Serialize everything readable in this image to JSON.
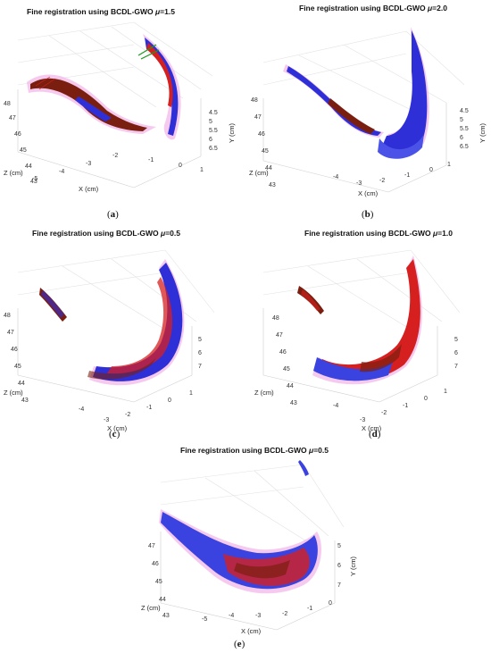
{
  "figure": {
    "panels": [
      {
        "id": "a",
        "label_open": "(",
        "label_letter": "a",
        "label_close": ")",
        "title_prefix": "Fine registration using BCDL-GWO ",
        "mu_symbol": "μ",
        "mu_value": "=1.5",
        "x_label": "X (cm)",
        "y_label": "Y (cm)",
        "z_label": "Z (cm)",
        "x_ticks": [
          "-5",
          "-4",
          "-3",
          "-2",
          "-1",
          "0",
          "1"
        ],
        "y_ticks": [
          "4.5",
          "5",
          "5.5",
          "6",
          "6.5"
        ],
        "z_ticks": [
          "48",
          "47",
          "46",
          "45",
          "44",
          "43"
        ]
      },
      {
        "id": "b",
        "label_open": "(",
        "label_letter": "b",
        "label_close": ")",
        "title_prefix": "Fine registration using BCDL-GWO ",
        "mu_symbol": "μ",
        "mu_value": "=2.0",
        "x_label": "X (cm)",
        "y_label": "Y (cm)",
        "z_label": "Z (cm)",
        "x_ticks": [
          "-4",
          "-3",
          "-2",
          "-1",
          "0",
          "1"
        ],
        "y_ticks": [
          "4.5",
          "5",
          "5.5",
          "6",
          "6.5"
        ],
        "z_ticks": [
          "48",
          "47",
          "46",
          "45",
          "44",
          "43"
        ]
      },
      {
        "id": "c",
        "label_open": "(",
        "label_letter": "c",
        "label_close": ")",
        "title_prefix": "Fine registration using BCDL-GWO ",
        "mu_symbol": "μ",
        "mu_value": "=0.5",
        "x_label": "X (cm)",
        "y_label": "",
        "z_label": "Z (cm)",
        "x_ticks": [
          "-4",
          "-3",
          "-2",
          "-1",
          "0",
          "1"
        ],
        "y_ticks": [
          "5",
          "6",
          "7"
        ],
        "z_ticks": [
          "48",
          "47",
          "46",
          "45",
          "44",
          "43"
        ]
      },
      {
        "id": "d",
        "label_open": "(",
        "label_letter": "d",
        "label_close": ")",
        "title_prefix": "Fine registration using BCDL-GWO ",
        "mu_symbol": "μ",
        "mu_value": "=1.0",
        "x_label": "X (cm)",
        "y_label": "",
        "z_label": "Z (cm)",
        "x_ticks": [
          "-4",
          "-3",
          "-2",
          "-1",
          "0",
          "1"
        ],
        "y_ticks": [
          "5",
          "6",
          "7"
        ],
        "z_ticks": [
          "48",
          "47",
          "46",
          "45",
          "44",
          "43"
        ]
      },
      {
        "id": "e",
        "label_open": "(",
        "label_letter": "e",
        "label_close": ")",
        "title_prefix": "Fine registration using BCDL-GWO ",
        "mu_symbol": "μ",
        "mu_value": "=0.5",
        "x_label": "X (cm)",
        "y_label": "Y (cm)",
        "z_label": "Z (cm)",
        "x_ticks": [
          "-5",
          "-4",
          "-3",
          "-2",
          "-1",
          "0"
        ],
        "y_ticks": [
          "5",
          "6",
          "7"
        ],
        "z_ticks": [
          "47",
          "46",
          "45",
          "44",
          "43"
        ]
      }
    ],
    "colors": {
      "source_cloud": "#2f2fd8",
      "target_cloud": "#d62020",
      "overlap": "#7a1f10",
      "correspondence": "#1a9a1a",
      "halo": "#f2b4e8"
    }
  }
}
